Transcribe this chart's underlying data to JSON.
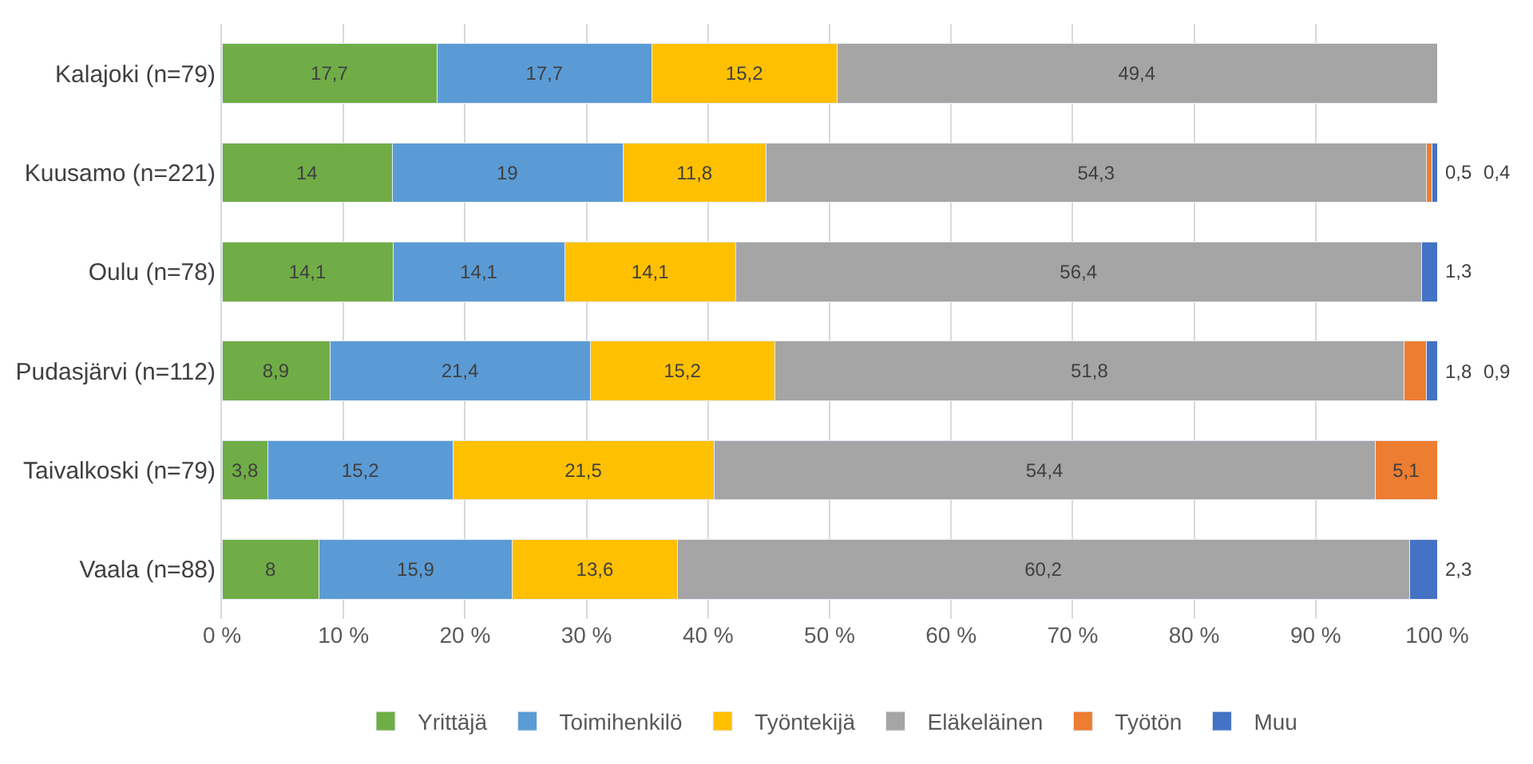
{
  "chart_data": {
    "type": "bar",
    "orientation": "horizontal",
    "stacked": true,
    "categories": [
      "Kalajoki (n=79)",
      "Kuusamo (n=221)",
      "Oulu (n=78)",
      "Pudasjärvi (n=112)",
      "Taivalkoski (n=79)",
      "Vaala (n=88)"
    ],
    "series": [
      {
        "name": "Yrittäjä",
        "color": "#70ad47",
        "values": [
          17.7,
          14,
          14.1,
          8.9,
          3.8,
          8
        ],
        "value_labels": [
          "17,7",
          "14",
          "14,1",
          "8,9",
          "3,8",
          "8"
        ]
      },
      {
        "name": "Toimihenkilö",
        "color": "#5b9bd5",
        "values": [
          17.7,
          19,
          14.1,
          21.4,
          15.2,
          15.9
        ],
        "value_labels": [
          "17,7",
          "19",
          "14,1",
          "21,4",
          "15,2",
          "15,9"
        ]
      },
      {
        "name": "Työntekijä",
        "color": "#ffc000",
        "values": [
          15.2,
          11.8,
          14.1,
          15.2,
          21.5,
          13.6
        ],
        "value_labels": [
          "15,2",
          "11,8",
          "14,1",
          "15,2",
          "21,5",
          "13,6"
        ]
      },
      {
        "name": "Eläkeläinen",
        "color": "#a5a5a5",
        "values": [
          49.4,
          54.3,
          56.4,
          51.8,
          54.4,
          60.2
        ],
        "value_labels": [
          "49,4",
          "54,3",
          "56,4",
          "51,8",
          "54,4",
          "60,2"
        ]
      },
      {
        "name": "Työtön",
        "color": "#ed7d31",
        "values": [
          null,
          0.5,
          null,
          1.8,
          5.1,
          null
        ],
        "value_labels": [
          null,
          "0,5",
          null,
          "1,8",
          "5,1",
          null
        ]
      },
      {
        "name": "Muu",
        "color": "#4472c4",
        "values": [
          null,
          0.4,
          1.3,
          0.9,
          null,
          2.3
        ],
        "value_labels": [
          null,
          "0,4",
          "1,3",
          "0,9",
          null,
          "2,3"
        ]
      }
    ],
    "xlim": [
      0,
      100
    ],
    "xticks": [
      {
        "value": 0,
        "label": "0 %"
      },
      {
        "value": 10,
        "label": "10 %"
      },
      {
        "value": 20,
        "label": "20 %"
      },
      {
        "value": 30,
        "label": "30 %"
      },
      {
        "value": 40,
        "label": "40 %"
      },
      {
        "value": 50,
        "label": "50 %"
      },
      {
        "value": 60,
        "label": "60 %"
      },
      {
        "value": 70,
        "label": "70 %"
      },
      {
        "value": 80,
        "label": "80 %"
      },
      {
        "value": 90,
        "label": "90 %"
      },
      {
        "value": 100,
        "label": "100 %"
      }
    ],
    "grid": "x",
    "legend": "bottom"
  }
}
